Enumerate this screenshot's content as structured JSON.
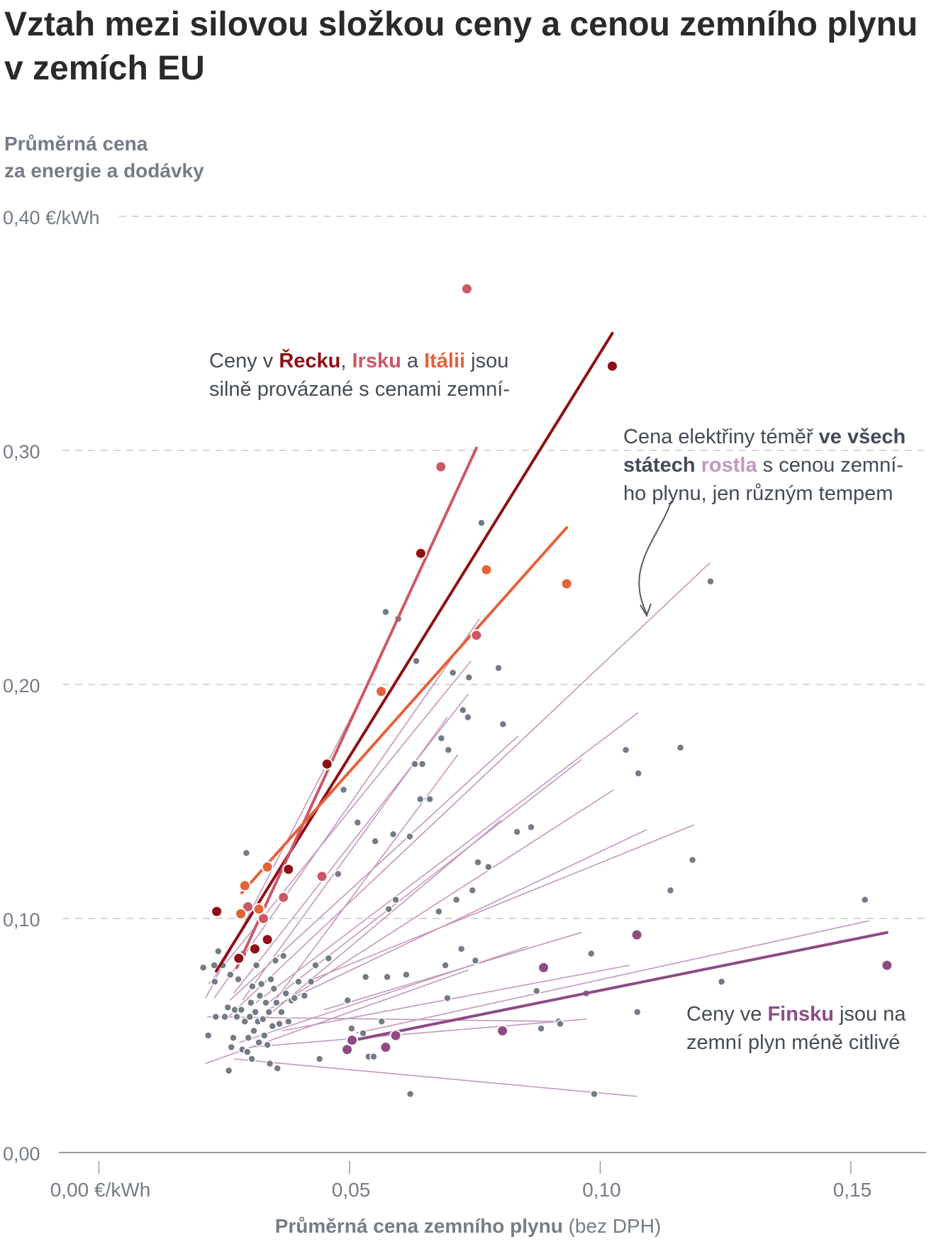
{
  "title": "Vztah mezi silovou složkou ceny a cenou zemního plynu v zemích EU",
  "colors": {
    "greece": "#8e1014",
    "ireland": "#cb5868",
    "italy": "#e4633a",
    "finland": "#8f4a86",
    "others_point": "#737b86",
    "others_line": "#c497bd",
    "grid": "#c8c8c8",
    "axis": "#9a9a9a",
    "label": "#757c86"
  },
  "annotations": {
    "top": {
      "part1": "Ceny v ",
      "greece": "Řecku",
      "part2": ", ",
      "ireland": "Irsku",
      "part3": " a ",
      "italy": "Itálii",
      "part4": " jsou",
      "line2": "silně provázané s cenami zemní-"
    },
    "right": {
      "part1": "Cena elektřiny téměř ",
      "bold1": "ve všech",
      "bold2": "státech",
      "space": " ",
      "rostla": "rostla",
      "part2": " s cenou zemní-",
      "line3": "ho plynu, jen různým tempem"
    },
    "bottom": {
      "part1": "Ceny ve ",
      "finland": "Finsku",
      "part2": " jsou na",
      "line2": "zemní plyn méně citlivé"
    }
  },
  "chart_data": {
    "type": "scatter",
    "title": "Vztah mezi silovou složkou ceny a cenou zemního plynu v zemích EU",
    "ylabel_line1": "Průměrná cena",
    "ylabel_line2": "za energie a dodávky",
    "xlabel_bold": "Průměrná cena zemního plynu",
    "xlabel_rest": " (bez DPH)",
    "x_unit": "€/kWh",
    "y_unit": "€/kWh",
    "xlim": [
      -0.008,
      0.165
    ],
    "ylim": [
      0,
      0.4
    ],
    "x_ticks": [
      {
        "value": 0,
        "label": "0,00 €/kWh"
      },
      {
        "value": 0.05,
        "label": "0,05"
      },
      {
        "value": 0.1,
        "label": "0,10"
      },
      {
        "value": 0.15,
        "label": "0,15"
      }
    ],
    "y_ticks": [
      {
        "value": 0,
        "label": "0,00"
      },
      {
        "value": 0.1,
        "label": "0,10"
      },
      {
        "value": 0.2,
        "label": "0,20"
      },
      {
        "value": 0.3,
        "label": "0,30"
      },
      {
        "value": 0.4,
        "label": "0,40 €/kWh"
      }
    ],
    "grid": "horizontal dashed",
    "highlighted_series": [
      {
        "name": "Řecko",
        "color_key": "greece",
        "fit": [
          [
            0.0234,
            0.0775
          ],
          [
            0.1024,
            0.35
          ]
        ],
        "points": [
          [
            0.0235,
            0.103
          ],
          [
            0.0279,
            0.083
          ],
          [
            0.0311,
            0.087
          ],
          [
            0.0336,
            0.091
          ],
          [
            0.0378,
            0.121
          ],
          [
            0.0455,
            0.166
          ],
          [
            0.0642,
            0.256
          ],
          [
            0.1024,
            0.336
          ]
        ]
      },
      {
        "name": "Irsko",
        "color_key": "ireland",
        "fit": [
          [
            0.0275,
            0.079
          ],
          [
            0.0753,
            0.301
          ]
        ],
        "points": [
          [
            0.0297,
            0.105
          ],
          [
            0.0328,
            0.1
          ],
          [
            0.0368,
            0.109
          ],
          [
            0.0445,
            0.118
          ],
          [
            0.0682,
            0.293
          ],
          [
            0.0734,
            0.369
          ],
          [
            0.0753,
            0.221
          ]
        ]
      },
      {
        "name": "Itálie",
        "color_key": "italy",
        "fit": [
          [
            0.0285,
            0.111
          ],
          [
            0.0933,
            0.267
          ]
        ],
        "points": [
          [
            0.0283,
            0.102
          ],
          [
            0.0291,
            0.114
          ],
          [
            0.0319,
            0.104
          ],
          [
            0.0336,
            0.122
          ],
          [
            0.0563,
            0.197
          ],
          [
            0.0773,
            0.249
          ],
          [
            0.0933,
            0.243
          ]
        ]
      },
      {
        "name": "Finsko",
        "color_key": "finland",
        "fit": [
          [
            0.0497,
            0.0475
          ],
          [
            0.1572,
            0.094
          ]
        ],
        "points": [
          [
            0.0495,
            0.044
          ],
          [
            0.0505,
            0.048
          ],
          [
            0.0572,
            0.045
          ],
          [
            0.0592,
            0.05
          ],
          [
            0.0805,
            0.052
          ],
          [
            0.0887,
            0.079
          ],
          [
            0.1073,
            0.093
          ],
          [
            0.1572,
            0.08
          ]
        ]
      }
    ],
    "other_fit_lines": [
      [
        [
          0.0213,
          0.066
        ],
        [
          0.0556,
          0.208
        ]
      ],
      [
        [
          0.023,
          0.066
        ],
        [
          0.0759,
          0.228
        ]
      ],
      [
        [
          0.0219,
          0.072
        ],
        [
          0.0742,
          0.21
        ]
      ],
      [
        [
          0.0269,
          0.068
        ],
        [
          0.0737,
          0.196
        ]
      ],
      [
        [
          0.0286,
          0.065
        ],
        [
          0.0695,
          0.186
        ]
      ],
      [
        [
          0.0261,
          0.065
        ],
        [
          0.0836,
          0.178
        ]
      ],
      [
        [
          0.0355,
          0.066
        ],
        [
          0.0716,
          0.17
        ]
      ],
      [
        [
          0.0258,
          0.058
        ],
        [
          0.1219,
          0.252
        ]
      ],
      [
        [
          0.0313,
          0.064
        ],
        [
          0.1076,
          0.188
        ]
      ],
      [
        [
          0.0332,
          0.063
        ],
        [
          0.0963,
          0.168
        ]
      ],
      [
        [
          0.0366,
          0.064
        ],
        [
          0.1027,
          0.155
        ]
      ],
      [
        [
          0.0318,
          0.055
        ],
        [
          0.0802,
          0.142
        ]
      ],
      [
        [
          0.0336,
          0.061
        ],
        [
          0.1093,
          0.138
        ]
      ],
      [
        [
          0.0415,
          0.073
        ],
        [
          0.1187,
          0.14
        ]
      ],
      [
        [
          0.0449,
          0.061
        ],
        [
          0.0962,
          0.094
        ]
      ],
      [
        [
          0.028,
          0.047
        ],
        [
          0.0855,
          0.088
        ]
      ],
      [
        [
          0.0212,
          0.038
        ],
        [
          0.0737,
          0.078
        ]
      ],
      [
        [
          0.0365,
          0.052
        ],
        [
          0.1058,
          0.08
        ]
      ],
      [
        [
          0.0513,
          0.051
        ],
        [
          0.1536,
          0.099
        ]
      ],
      [
        [
          0.03,
          0.045
        ],
        [
          0.0972,
          0.057
        ]
      ],
      [
        [
          0.0216,
          0.058
        ],
        [
          0.092,
          0.056
        ]
      ],
      [
        [
          0.0269,
          0.04
        ],
        [
          0.1073,
          0.024
        ]
      ]
    ],
    "other_points": [
      [
        0.0208,
        0.079
      ],
      [
        0.0218,
        0.05
      ],
      [
        0.023,
        0.08
      ],
      [
        0.0233,
        0.058
      ],
      [
        0.0231,
        0.073
      ],
      [
        0.0238,
        0.086
      ],
      [
        0.0247,
        0.08
      ],
      [
        0.0251,
        0.058
      ],
      [
        0.0257,
        0.062
      ],
      [
        0.0259,
        0.035
      ],
      [
        0.0262,
        0.076
      ],
      [
        0.0264,
        0.045
      ],
      [
        0.0268,
        0.049
      ],
      [
        0.0271,
        0.061
      ],
      [
        0.0275,
        0.058
      ],
      [
        0.0278,
        0.074
      ],
      [
        0.0284,
        0.061
      ],
      [
        0.0286,
        0.044
      ],
      [
        0.0288,
        0.085
      ],
      [
        0.0291,
        0.056
      ],
      [
        0.0294,
        0.128
      ],
      [
        0.0296,
        0.043
      ],
      [
        0.0298,
        0.049
      ],
      [
        0.0301,
        0.058
      ],
      [
        0.0303,
        0.064
      ],
      [
        0.0305,
        0.04
      ],
      [
        0.0306,
        0.071
      ],
      [
        0.0309,
        0.052
      ],
      [
        0.0312,
        0.06
      ],
      [
        0.0314,
        0.08
      ],
      [
        0.0317,
        0.056
      ],
      [
        0.0319,
        0.047
      ],
      [
        0.0321,
        0.067
      ],
      [
        0.0324,
        0.072
      ],
      [
        0.0327,
        0.057
      ],
      [
        0.033,
        0.05
      ],
      [
        0.0333,
        0.064
      ],
      [
        0.0336,
        0.046
      ],
      [
        0.0339,
        0.06
      ],
      [
        0.0341,
        0.038
      ],
      [
        0.0343,
        0.074
      ],
      [
        0.0346,
        0.054
      ],
      [
        0.0349,
        0.07
      ],
      [
        0.0352,
        0.082
      ],
      [
        0.0354,
        0.064
      ],
      [
        0.0356,
        0.036
      ],
      [
        0.036,
        0.055
      ],
      [
        0.0364,
        0.06
      ],
      [
        0.0368,
        0.084
      ],
      [
        0.0373,
        0.068
      ],
      [
        0.0378,
        0.056
      ],
      [
        0.0384,
        0.065
      ],
      [
        0.039,
        0.066
      ],
      [
        0.0398,
        0.073
      ],
      [
        0.041,
        0.067
      ],
      [
        0.0423,
        0.073
      ],
      [
        0.0432,
        0.08
      ],
      [
        0.044,
        0.04
      ],
      [
        0.0458,
        0.083
      ],
      [
        0.0477,
        0.119
      ],
      [
        0.0488,
        0.155
      ],
      [
        0.0496,
        0.065
      ],
      [
        0.0504,
        0.053
      ],
      [
        0.0516,
        0.141
      ],
      [
        0.0527,
        0.051
      ],
      [
        0.0532,
        0.075
      ],
      [
        0.0538,
        0.041
      ],
      [
        0.0548,
        0.041
      ],
      [
        0.0551,
        0.133
      ],
      [
        0.0561,
        0.198
      ],
      [
        0.0564,
        0.056
      ],
      [
        0.0572,
        0.231
      ],
      [
        0.0575,
        0.075
      ],
      [
        0.0578,
        0.104
      ],
      [
        0.0587,
        0.136
      ],
      [
        0.0592,
        0.108
      ],
      [
        0.0597,
        0.228
      ],
      [
        0.0613,
        0.076
      ],
      [
        0.062,
        0.135
      ],
      [
        0.0621,
        0.025
      ],
      [
        0.063,
        0.166
      ],
      [
        0.0633,
        0.21
      ],
      [
        0.0641,
        0.151
      ],
      [
        0.0645,
        0.166
      ],
      [
        0.066,
        0.151
      ],
      [
        0.0678,
        0.103
      ],
      [
        0.0683,
        0.177
      ],
      [
        0.0691,
        0.08
      ],
      [
        0.0695,
        0.066
      ],
      [
        0.0697,
        0.172
      ],
      [
        0.0706,
        0.205
      ],
      [
        0.0713,
        0.108
      ],
      [
        0.0723,
        0.087
      ],
      [
        0.0726,
        0.189
      ],
      [
        0.0736,
        0.186
      ],
      [
        0.0738,
        0.203
      ],
      [
        0.0745,
        0.112
      ],
      [
        0.0751,
        0.082
      ],
      [
        0.0756,
        0.124
      ],
      [
        0.0763,
        0.269
      ],
      [
        0.0777,
        0.122
      ],
      [
        0.0797,
        0.207
      ],
      [
        0.0806,
        0.183
      ],
      [
        0.0834,
        0.137
      ],
      [
        0.0862,
        0.139
      ],
      [
        0.0873,
        0.069
      ],
      [
        0.0882,
        0.053
      ],
      [
        0.0917,
        0.056
      ],
      [
        0.092,
        0.055
      ],
      [
        0.0972,
        0.068
      ],
      [
        0.0982,
        0.085
      ],
      [
        0.0988,
        0.025
      ],
      [
        0.1051,
        0.172
      ],
      [
        0.1074,
        0.06
      ],
      [
        0.1076,
        0.162
      ],
      [
        0.114,
        0.112
      ],
      [
        0.116,
        0.173
      ],
      [
        0.1184,
        0.125
      ],
      [
        0.122,
        0.244
      ],
      [
        0.1242,
        0.073
      ],
      [
        0.1528,
        0.108
      ]
    ]
  }
}
